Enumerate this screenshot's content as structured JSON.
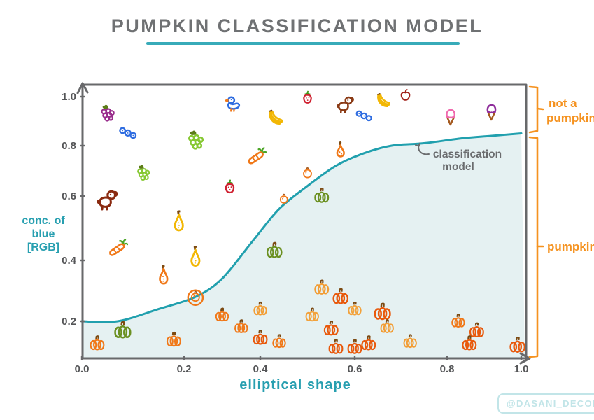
{
  "title": "PUMPKIN CLASSIFICATION MODEL",
  "watermark": "@DASANI_DECODED",
  "colors": {
    "title_gray": "#6f7173",
    "axis_gray": "#68696b",
    "teal": "#279fb0",
    "curve_teal": "#21a0ae",
    "curve_fill": "#e5f1f2",
    "annotation_orange": "#f5921f",
    "watermark_teal": "#c2e5e8"
  },
  "chart_data": {
    "type": "scatter",
    "title": "PUMPKIN CLASSIFICATION MODEL",
    "xlabel": "elliptical shape",
    "ylabel": "conc. of blue [RGB]",
    "ylabel_lines": [
      "conc. of",
      "blue",
      "[RGB]"
    ],
    "xlim": [
      0,
      1
    ],
    "ylim": [
      0,
      1
    ],
    "grid": false,
    "legend": "none",
    "xticks": {
      "values": [
        0,
        0.2,
        0.4,
        0.6,
        0.8,
        1.0
      ],
      "labels": [
        "0.0",
        "0.2",
        "0.4",
        "0.6",
        "0.8",
        "1.0"
      ]
    },
    "yticks": {
      "values": [
        0.2,
        0.4,
        0.6,
        0.8,
        1.0
      ],
      "labels": [
        "0.2",
        "0.4",
        "0.6",
        "0.8",
        "1.0"
      ]
    },
    "annotations": {
      "curve_label_lines": [
        "classification",
        "model"
      ],
      "region_top_lines": [
        "not a",
        "pumpkin"
      ],
      "region_bottom": "pumpkin"
    },
    "curve": {
      "name": "classification model",
      "color": "#21a0ae",
      "fill": "#e5f1f2",
      "points": [
        [
          0.0,
          0.2
        ],
        [
          0.07,
          0.2
        ],
        [
          0.15,
          0.24
        ],
        [
          0.23,
          0.28
        ],
        [
          0.3,
          0.34
        ],
        [
          0.38,
          0.46
        ],
        [
          0.44,
          0.56
        ],
        [
          0.5,
          0.64
        ],
        [
          0.56,
          0.72
        ],
        [
          0.62,
          0.77
        ],
        [
          0.68,
          0.8
        ],
        [
          0.75,
          0.81
        ],
        [
          0.84,
          0.83
        ],
        [
          0.92,
          0.84
        ],
        [
          1.0,
          0.85
        ]
      ]
    },
    "points": [
      {
        "x": 0.05,
        "y": 0.93,
        "icon": "grapes",
        "color": "#992d8c",
        "size": 30,
        "class": "not a pumpkin"
      },
      {
        "x": 0.09,
        "y": 0.85,
        "icon": "berries",
        "color": "#2e6ce0",
        "size": 28,
        "class": "not a pumpkin"
      },
      {
        "x": 0.23,
        "y": 0.82,
        "icon": "grapes",
        "color": "#86c832",
        "size": 34,
        "class": "not a pumpkin"
      },
      {
        "x": 0.12,
        "y": 0.69,
        "icon": "grapes",
        "color": "#86c832",
        "size": 28,
        "class": "not a pumpkin"
      },
      {
        "x": 0.33,
        "y": 0.97,
        "icon": "duck",
        "color": "#2e6ce0",
        "size": 30,
        "class": "not a pumpkin"
      },
      {
        "x": 0.43,
        "y": 0.91,
        "icon": "banana",
        "color": "#f2b705",
        "size": 32,
        "class": "not a pumpkin"
      },
      {
        "x": 0.5,
        "y": 0.99,
        "icon": "strawberry",
        "color": "#cf2030",
        "size": 26,
        "class": "not a pumpkin"
      },
      {
        "x": 0.58,
        "y": 0.97,
        "icon": "dog",
        "color": "#8a3a15",
        "size": 30,
        "class": "not a pumpkin"
      },
      {
        "x": 0.62,
        "y": 0.92,
        "icon": "berries",
        "color": "#2e6ce0",
        "size": 26,
        "class": "not a pumpkin"
      },
      {
        "x": 0.66,
        "y": 0.98,
        "icon": "banana",
        "color": "#f2b705",
        "size": 30,
        "class": "not a pumpkin"
      },
      {
        "x": 0.71,
        "y": 1.0,
        "icon": "apple",
        "color": "#a02018",
        "size": 24,
        "class": "not a pumpkin"
      },
      {
        "x": 0.81,
        "y": 0.92,
        "icon": "icecream",
        "color": "#f06aae",
        "size": 30,
        "class": "not a pumpkin"
      },
      {
        "x": 0.92,
        "y": 0.94,
        "icon": "icecream",
        "color": "#8e2d9b",
        "size": 30,
        "class": "not a pumpkin"
      },
      {
        "x": 0.39,
        "y": 0.76,
        "icon": "carrot",
        "color": "#f07818",
        "size": 30,
        "class": "not a pumpkin"
      },
      {
        "x": 0.57,
        "y": 0.78,
        "icon": "pear",
        "color": "#f07818",
        "size": 30,
        "class": "not a pumpkin"
      },
      {
        "x": 0.5,
        "y": 0.69,
        "icon": "tomato",
        "color": "#f07818",
        "size": 22,
        "class": "not a pumpkin"
      },
      {
        "x": 0.05,
        "y": 0.59,
        "icon": "dog",
        "color": "#8a2a10",
        "size": 36,
        "class": "not a pumpkin"
      },
      {
        "x": 0.32,
        "y": 0.63,
        "icon": "strawberry",
        "color": "#cf2030",
        "size": 28,
        "class": "not a pumpkin"
      },
      {
        "x": 0.19,
        "y": 0.52,
        "icon": "gourd",
        "color": "#f2b705",
        "size": 34,
        "class": "not a pumpkin"
      },
      {
        "x": 0.07,
        "y": 0.44,
        "icon": "carrot",
        "color": "#f07818",
        "size": 30,
        "class": "not a pumpkin"
      },
      {
        "x": 0.23,
        "y": 0.41,
        "icon": "gourd",
        "color": "#f2b705",
        "size": 34,
        "class": "not a pumpkin"
      },
      {
        "x": 0.16,
        "y": 0.35,
        "icon": "gourd",
        "color": "#f07818",
        "size": 32,
        "class": "not a pumpkin"
      },
      {
        "x": 0.45,
        "y": 0.59,
        "icon": "tomato",
        "color": "#f07818",
        "size": 20,
        "class": "not a pumpkin"
      },
      {
        "x": 0.23,
        "y": 0.28,
        "icon": "tomato",
        "color": "#f07818",
        "size": 22,
        "ring": true,
        "class": "not a pumpkin"
      },
      {
        "x": 0.53,
        "y": 0.6,
        "icon": "pumpkin",
        "color": "#6b9021",
        "size": 26,
        "class": "pumpkin"
      },
      {
        "x": 0.43,
        "y": 0.43,
        "icon": "pumpkin",
        "color": "#6b9021",
        "size": 28,
        "class": "pumpkin"
      },
      {
        "x": 0.08,
        "y": 0.15,
        "icon": "pumpkin",
        "color": "#6b9021",
        "size": 30,
        "class": "pumpkin"
      },
      {
        "x": 0.03,
        "y": 0.08,
        "icon": "pumpkin",
        "color": "#f07818",
        "size": 26,
        "class": "pumpkin"
      },
      {
        "x": 0.18,
        "y": 0.1,
        "icon": "pumpkin",
        "color": "#f07818",
        "size": 26,
        "class": "pumpkin"
      },
      {
        "x": 0.3,
        "y": 0.22,
        "icon": "pumpkin",
        "color": "#f07818",
        "size": 24,
        "class": "pumpkin"
      },
      {
        "x": 0.35,
        "y": 0.17,
        "icon": "pumpkin",
        "color": "#f07818",
        "size": 24,
        "class": "pumpkin"
      },
      {
        "x": 0.4,
        "y": 0.24,
        "icon": "pumpkin",
        "color": "#f29d35",
        "size": 24,
        "class": "pumpkin"
      },
      {
        "x": 0.4,
        "y": 0.11,
        "icon": "pumpkin",
        "color": "#e8590c",
        "size": 26,
        "class": "pumpkin"
      },
      {
        "x": 0.44,
        "y": 0.09,
        "icon": "pumpkin",
        "color": "#f07818",
        "size": 24,
        "class": "pumpkin"
      },
      {
        "x": 0.53,
        "y": 0.31,
        "icon": "pumpkin",
        "color": "#f29d35",
        "size": 26,
        "class": "pumpkin"
      },
      {
        "x": 0.51,
        "y": 0.22,
        "icon": "pumpkin",
        "color": "#f2a23c",
        "size": 24,
        "class": "pumpkin"
      },
      {
        "x": 0.57,
        "y": 0.28,
        "icon": "pumpkin",
        "color": "#e8590c",
        "size": 28,
        "class": "pumpkin"
      },
      {
        "x": 0.6,
        "y": 0.24,
        "icon": "pumpkin",
        "color": "#f2a23c",
        "size": 24,
        "class": "pumpkin"
      },
      {
        "x": 0.66,
        "y": 0.23,
        "icon": "pumpkin",
        "color": "#e8590c",
        "size": 30,
        "class": "pumpkin"
      },
      {
        "x": 0.55,
        "y": 0.16,
        "icon": "pumpkin",
        "color": "#e8590c",
        "size": 26,
        "class": "pumpkin"
      },
      {
        "x": 0.67,
        "y": 0.17,
        "icon": "pumpkin",
        "color": "#f29d35",
        "size": 24,
        "class": "pumpkin"
      },
      {
        "x": 0.72,
        "y": 0.09,
        "icon": "pumpkin",
        "color": "#f29d35",
        "size": 24,
        "class": "pumpkin"
      },
      {
        "x": 0.63,
        "y": 0.08,
        "icon": "pumpkin",
        "color": "#e8590c",
        "size": 26,
        "class": "pumpkin"
      },
      {
        "x": 0.56,
        "y": 0.06,
        "icon": "pumpkin",
        "color": "#e8590c",
        "size": 26,
        "class": "pumpkin"
      },
      {
        "x": 0.6,
        "y": 0.06,
        "icon": "pumpkin",
        "color": "#e8590c",
        "size": 26,
        "class": "pumpkin"
      },
      {
        "x": 0.83,
        "y": 0.2,
        "icon": "pumpkin",
        "color": "#f07818",
        "size": 24,
        "class": "pumpkin"
      },
      {
        "x": 0.88,
        "y": 0.15,
        "icon": "pumpkin",
        "color": "#e8590c",
        "size": 26,
        "class": "pumpkin"
      },
      {
        "x": 0.86,
        "y": 0.08,
        "icon": "pumpkin",
        "color": "#e8590c",
        "size": 26,
        "class": "pumpkin"
      },
      {
        "x": 0.99,
        "y": 0.07,
        "icon": "pumpkin",
        "color": "#e8590c",
        "size": 28,
        "class": "pumpkin"
      }
    ]
  }
}
